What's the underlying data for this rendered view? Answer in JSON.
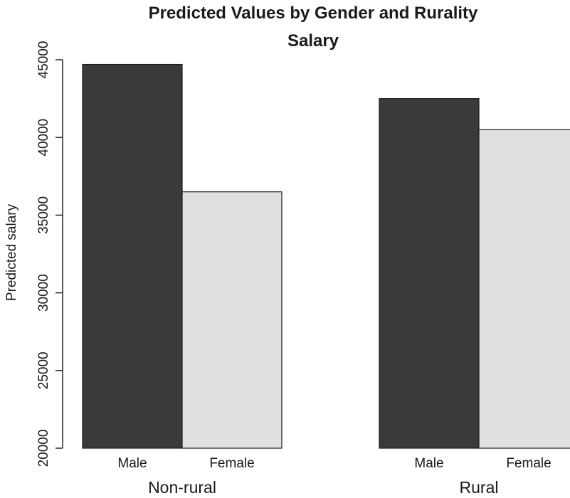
{
  "chart_data": {
    "type": "bar",
    "title": "Predicted Values by Gender and Rurality",
    "subtitle": "Salary",
    "xlabel": "",
    "ylabel": "Predicted salary",
    "ylim": [
      20000,
      45000
    ],
    "y_ticks": [
      20000,
      25000,
      30000,
      35000,
      40000,
      45000
    ],
    "y_tick_labels": [
      "20000",
      "25000",
      "30000",
      "35000",
      "40000",
      "45000"
    ],
    "grid": false,
    "legend": null,
    "groups": [
      {
        "name": "Non-rural",
        "bars": [
          {
            "label": "Male",
            "value": 44700,
            "color": "#3a3a3a"
          },
          {
            "label": "Female",
            "value": 36500,
            "color": "#e0e0e0"
          }
        ]
      },
      {
        "name": "Rural",
        "bars": [
          {
            "label": "Male",
            "value": 42500,
            "color": "#3a3a3a"
          },
          {
            "label": "Female",
            "value": 40500,
            "color": "#e0e0e0"
          }
        ]
      }
    ]
  }
}
